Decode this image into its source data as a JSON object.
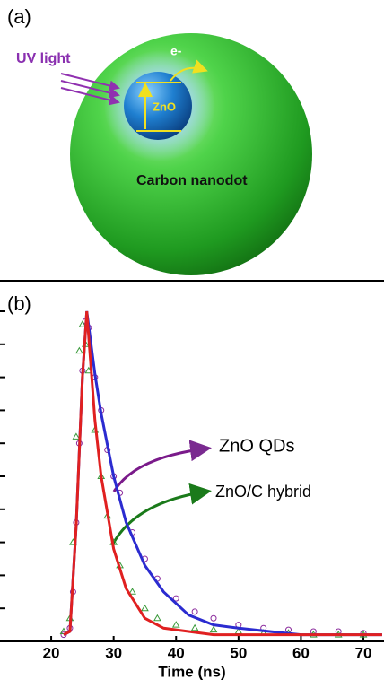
{
  "panel_a": {
    "label": "(a)",
    "uv_light": "UV light",
    "electron": "e-",
    "core": "ZnO",
    "shell": "Carbon nanodot"
  },
  "chart_data": {
    "type": "line",
    "panel_label": "(b)",
    "x_label": "Time (ns)",
    "xlim": [
      11.8,
      73.3
    ],
    "xticks": [
      20,
      30,
      40,
      50,
      60,
      70
    ],
    "ylim": [
      0,
      1
    ],
    "yticks": [
      0,
      0.1,
      0.2,
      0.3,
      0.4,
      0.5,
      0.6,
      0.7,
      0.8,
      0.9,
      1.0
    ],
    "fit_x": [
      22,
      23,
      24,
      25,
      25.7,
      27,
      28,
      30,
      32,
      35,
      38,
      42,
      46,
      50,
      55,
      60,
      65,
      70,
      73
    ],
    "series": [
      {
        "name": "ZnO QDs",
        "color": "#8a2a9c",
        "marker": "circle",
        "x": [
          22,
          23,
          23.5,
          24,
          24.5,
          25,
          25.5,
          26,
          27,
          28,
          29,
          30,
          31,
          33,
          35,
          37,
          40,
          43,
          46,
          50,
          54,
          58,
          62,
          66,
          70
        ],
        "values": [
          0.02,
          0.04,
          0.15,
          0.36,
          0.6,
          0.82,
          0.97,
          0.95,
          0.8,
          0.7,
          0.58,
          0.5,
          0.45,
          0.33,
          0.25,
          0.19,
          0.13,
          0.09,
          0.07,
          0.05,
          0.04,
          0.035,
          0.03,
          0.03,
          0.025
        ],
        "fit": {
          "color": "#2b2bd0",
          "values": [
            0.02,
            0.03,
            0.35,
            0.8,
            1.0,
            0.81,
            0.69,
            0.5,
            0.36,
            0.23,
            0.15,
            0.08,
            0.05,
            0.04,
            0.03,
            0.02,
            0.02,
            0.02,
            0.02
          ]
        }
      },
      {
        "name": "ZnO/C hybrid",
        "color": "#3a9a3a",
        "marker": "triangle",
        "x": [
          22,
          23,
          23.5,
          24,
          24.5,
          25,
          25.5,
          26,
          27,
          28,
          29,
          30,
          31,
          33,
          35,
          37,
          40,
          43,
          46,
          50,
          54,
          58,
          62,
          66,
          70
        ],
        "values": [
          0.03,
          0.07,
          0.3,
          0.62,
          0.88,
          0.96,
          0.9,
          0.82,
          0.64,
          0.5,
          0.38,
          0.3,
          0.23,
          0.15,
          0.1,
          0.07,
          0.05,
          0.04,
          0.035,
          0.03,
          0.025,
          0.025,
          0.02,
          0.02,
          0.02
        ],
        "fit": {
          "color": "#e02020",
          "values": [
            0.02,
            0.03,
            0.35,
            0.8,
            1.0,
            0.67,
            0.5,
            0.28,
            0.16,
            0.07,
            0.04,
            0.03,
            0.02,
            0.02,
            0.02,
            0.02,
            0.02,
            0.02,
            0.02
          ]
        }
      }
    ]
  }
}
